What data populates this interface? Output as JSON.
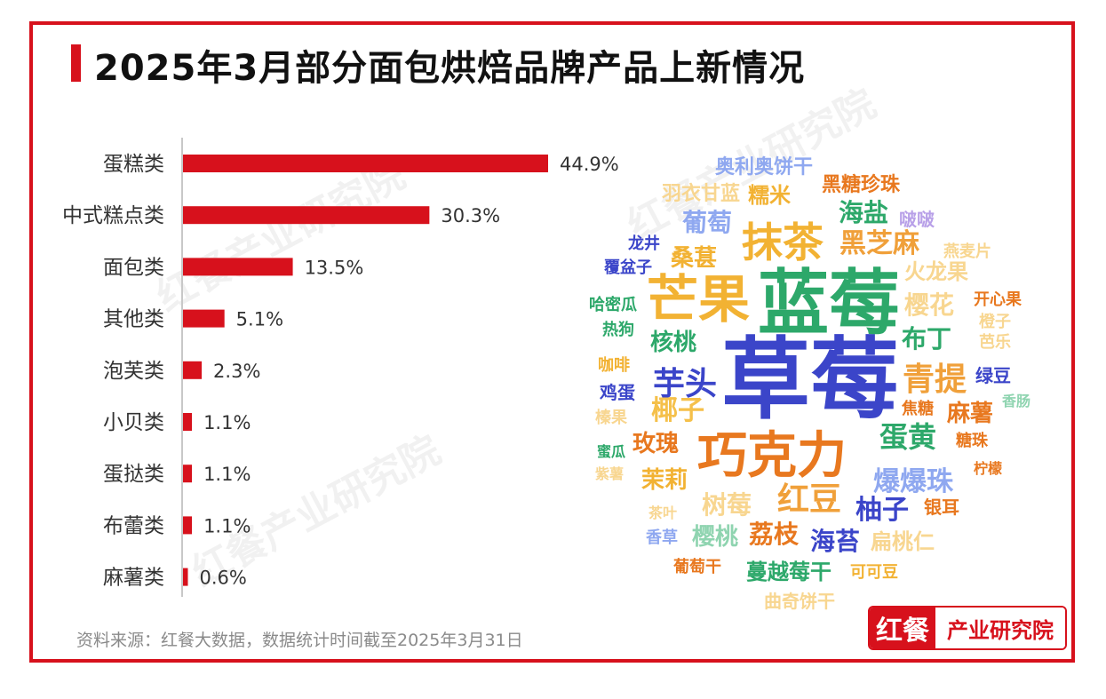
{
  "title": "2025年3月部分面包烘焙品牌产品上新情况",
  "source": "资料来源：红餐大数据，数据统计时间截至2025年3月31日",
  "logo": {
    "mark": "红餐",
    "text": "产业研究院"
  },
  "watermark": "红餐产业研究院",
  "colors": {
    "accent": "#d7111c"
  },
  "chart_data": {
    "type": "bar",
    "orientation": "horizontal",
    "categories": [
      "蛋糕类",
      "中式糕点类",
      "面包类",
      "其他类",
      "泡芙类",
      "小贝类",
      "蛋挞类",
      "布蕾类",
      "麻薯类"
    ],
    "values": [
      44.9,
      30.3,
      13.5,
      5.1,
      2.3,
      1.1,
      1.1,
      1.1,
      0.6
    ],
    "value_labels": [
      "44.9%",
      "30.3%",
      "13.5%",
      "5.1%",
      "2.3%",
      "1.1%",
      "1.1%",
      "1.1%",
      "0.6%"
    ],
    "unit": "%",
    "bar_color": "#d7111c"
  },
  "word_cloud": [
    {
      "text": "草莓",
      "color": "#3b45c9"
    },
    {
      "text": "蓝莓",
      "color": "#2da86a"
    },
    {
      "text": "巧克力",
      "color": "#e8781f"
    },
    {
      "text": "芒果",
      "color": "#f2b233"
    },
    {
      "text": "抹茶",
      "color": "#f2b233"
    },
    {
      "text": "芋头",
      "color": "#3b45c9"
    },
    {
      "text": "青提",
      "color": "#f0a03a"
    },
    {
      "text": "椰子",
      "color": "#f5c04a"
    },
    {
      "text": "蛋黄",
      "color": "#2da86a"
    },
    {
      "text": "黑芝麻",
      "color": "#f0a03a"
    },
    {
      "text": "爆爆珠",
      "color": "#8fa8f0"
    },
    {
      "text": "红豆",
      "color": "#f0a03a"
    },
    {
      "text": "柚子",
      "color": "#3b45c9"
    },
    {
      "text": "樱花",
      "color": "#f8d690"
    },
    {
      "text": "布丁",
      "color": "#2da86a"
    },
    {
      "text": "海盐",
      "color": "#2da86a"
    },
    {
      "text": "核桃",
      "color": "#2da86a"
    },
    {
      "text": "玫瑰",
      "color": "#e8781f"
    },
    {
      "text": "树莓",
      "color": "#f8d690"
    },
    {
      "text": "荔枝",
      "color": "#e8781f"
    },
    {
      "text": "海苔",
      "color": "#3b45c9"
    },
    {
      "text": "樱桃",
      "color": "#8fd4b0"
    },
    {
      "text": "葡萄",
      "color": "#8fa8f0"
    },
    {
      "text": "桑葚",
      "color": "#f2b233"
    },
    {
      "text": "火龙果",
      "color": "#f8d690"
    },
    {
      "text": "麻薯",
      "color": "#e8781f"
    },
    {
      "text": "茉莉",
      "color": "#f2b233"
    },
    {
      "text": "扁桃仁",
      "color": "#f8d690"
    },
    {
      "text": "蔓越莓干",
      "color": "#2da86a"
    },
    {
      "text": "羽衣甘蓝",
      "color": "#f8d690"
    },
    {
      "text": "糯米",
      "color": "#f2b233"
    },
    {
      "text": "黑糖珍珠",
      "color": "#e8781f"
    },
    {
      "text": "奥利奥饼干",
      "color": "#8fa8f0"
    },
    {
      "text": "啵啵",
      "color": "#b8a0e8"
    },
    {
      "text": "燕麦片",
      "color": "#f8d690"
    },
    {
      "text": "开心果",
      "color": "#e8781f"
    },
    {
      "text": "橙子",
      "color": "#f8d690"
    },
    {
      "text": "芭乐",
      "color": "#f8d690"
    },
    {
      "text": "绿豆",
      "color": "#3b45c9"
    },
    {
      "text": "香肠",
      "color": "#8fd4b0"
    },
    {
      "text": "焦糖",
      "color": "#e8781f"
    },
    {
      "text": "糖珠",
      "color": "#e8781f"
    },
    {
      "text": "柠檬",
      "color": "#e8781f"
    },
    {
      "text": "银耳",
      "color": "#e8781f"
    },
    {
      "text": "龙井",
      "color": "#3b45c9"
    },
    {
      "text": "覆盆子",
      "color": "#3b45c9"
    },
    {
      "text": "哈密瓜",
      "color": "#2da86a"
    },
    {
      "text": "热狗",
      "color": "#2da86a"
    },
    {
      "text": "咖啡",
      "color": "#f2b233"
    },
    {
      "text": "鸡蛋",
      "color": "#3b45c9"
    },
    {
      "text": "榛果",
      "color": "#f8d690"
    },
    {
      "text": "蜜瓜",
      "color": "#2da86a"
    },
    {
      "text": "紫薯",
      "color": "#f8d690"
    },
    {
      "text": "茶叶",
      "color": "#f8d690"
    },
    {
      "text": "香草",
      "color": "#8fa8f0"
    },
    {
      "text": "葡萄干",
      "color": "#e8781f"
    },
    {
      "text": "可可豆",
      "color": "#f2b233"
    },
    {
      "text": "曲奇饼干",
      "color": "#f8d690"
    }
  ]
}
